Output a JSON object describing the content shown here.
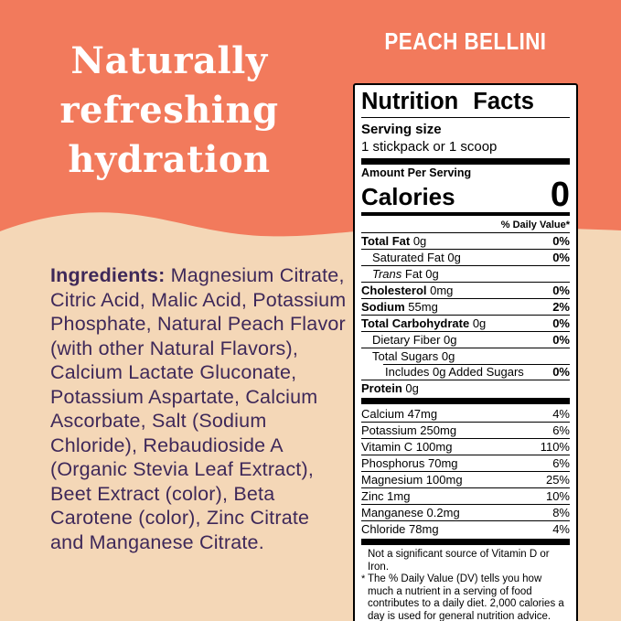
{
  "colors": {
    "orange": "#F27A5C",
    "peach": "#F4D7B7",
    "purple": "#3E2859",
    "panel_border": "#000000",
    "headline_text": "#FFFFFF"
  },
  "hero": {
    "headline": "Naturally refreshing hydration",
    "flavor": "PEACH BELLINI"
  },
  "ingredients": {
    "label": "Ingredients:",
    "text": " Magnesium Citrate, Citric Acid, Malic Acid, Potassium Phosphate, Natural Peach Flavor (with other Natural Flavors), Calcium Lactate Gluconate, Potassium Aspartate, Calcium Ascorbate, Salt (Sodium Chloride), Rebaudioside A (Organic Stevia Leaf Extract), Beet Extract (color), Beta Carotene (color), Zinc Citrate and Manganese Citrate."
  },
  "nutrition": {
    "title": "Nutrition Facts",
    "serving_size_label": "Serving size",
    "serving_size_value": "1 stickpack or 1 scoop",
    "amount_per_serving": "Amount Per Serving",
    "calories_label": "Calories",
    "calories_value": "0",
    "daily_value_header": "% Daily Value*",
    "rows": [
      {
        "name": "Total Fat",
        "amount": "0g",
        "dv": "0%",
        "style": "bold",
        "indent": 0
      },
      {
        "name": "Saturated Fat",
        "amount": "0g",
        "dv": "0%",
        "style": "plain",
        "indent": 1
      },
      {
        "name": "Trans Fat",
        "amount": "0g",
        "dv": "",
        "style": "italic-lead",
        "indent": 1
      },
      {
        "name": "Cholesterol",
        "amount": "0mg",
        "dv": "0%",
        "style": "bold",
        "indent": 0
      },
      {
        "name": "Sodium",
        "amount": "55mg",
        "dv": "2%",
        "style": "bold",
        "indent": 0
      },
      {
        "name": "Total Carbohydrate",
        "amount": "0g",
        "dv": "0%",
        "style": "bold",
        "indent": 0
      },
      {
        "name": "Dietary Fiber",
        "amount": "0g",
        "dv": "0%",
        "style": "plain",
        "indent": 1
      },
      {
        "name": "Total Sugars",
        "amount": "0g",
        "dv": "",
        "style": "plain",
        "indent": 1
      },
      {
        "name": "Includes 0g Added Sugars",
        "amount": "",
        "dv": "0%",
        "style": "plain",
        "indent": 2,
        "topline": "indent"
      },
      {
        "name": "Protein",
        "amount": "0g",
        "dv": "",
        "style": "bold",
        "indent": 0
      }
    ],
    "minerals": [
      {
        "name": "Calcium 47mg",
        "dv": "4%"
      },
      {
        "name": "Potassium 250mg",
        "dv": "6%"
      },
      {
        "name": "Vitamin C 100mg",
        "dv": "110%"
      },
      {
        "name": "Phosphorus 70mg",
        "dv": "6%"
      },
      {
        "name": "Magnesium 100mg",
        "dv": "25%"
      },
      {
        "name": "Zinc 1mg",
        "dv": "10%"
      },
      {
        "name": "Manganese 0.2mg",
        "dv": "8%"
      },
      {
        "name": "Chloride 78mg",
        "dv": "4%"
      }
    ],
    "footnote_1": "Not a significant source of Vitamin D or Iron.",
    "footnote_marker": "*",
    "footnote_2": "The % Daily Value (DV) tells you how much a nutrient in a serving of food contributes to a daily diet. 2,000 calories a day is used for general nutrition advice."
  }
}
